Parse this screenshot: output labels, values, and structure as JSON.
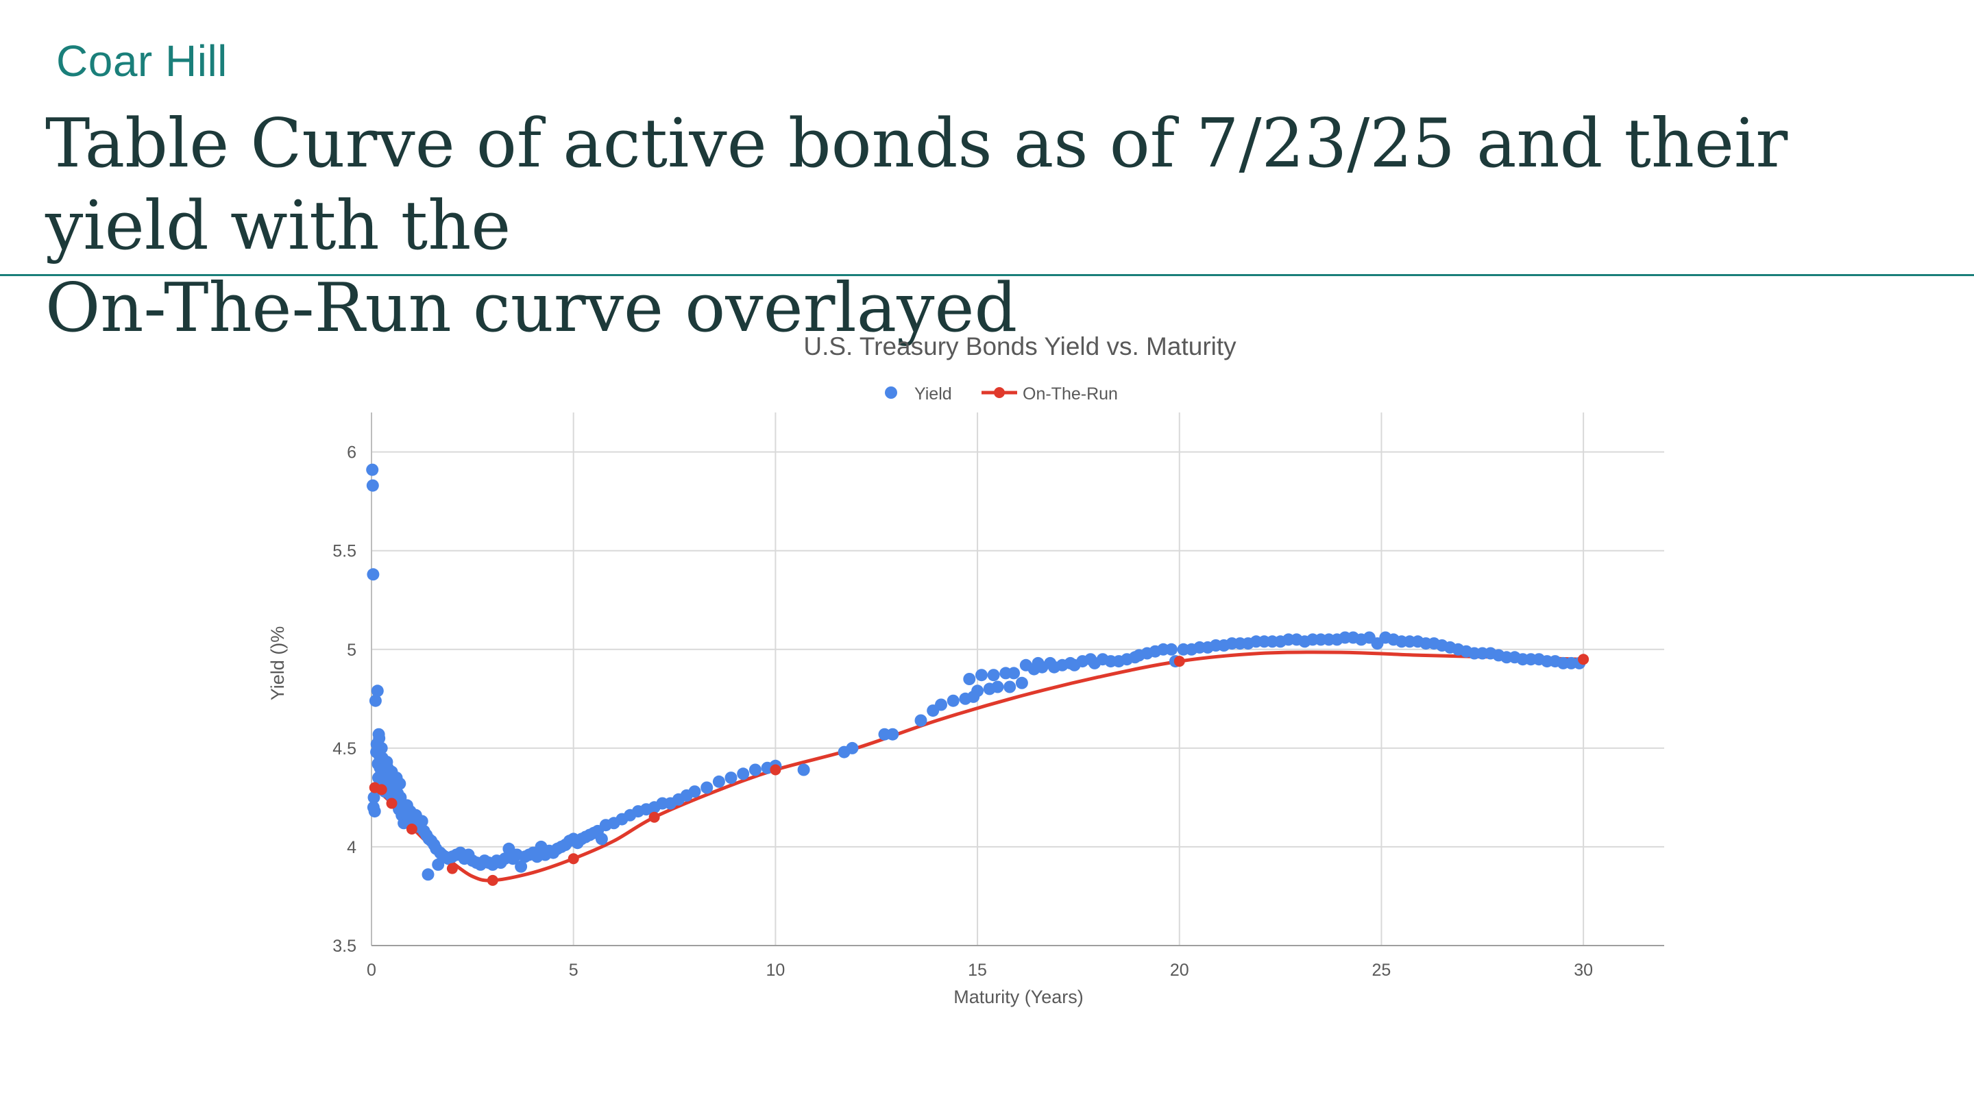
{
  "brand": "Coar Hill",
  "slide_title_line1": "Table Curve of active bonds as of 7/23/25 and their yield with the",
  "slide_title_line2": "On-The-Run curve overlayed",
  "colors": {
    "brand": "#1a7f7a",
    "title": "#1d3a3a",
    "yield_series": "#4a86e8",
    "on_the_run_series": "#e0392b",
    "gridline": "#d9d9d9"
  },
  "chart_data": {
    "type": "scatter",
    "title": "U.S. Treasury Bonds Yield vs. Maturity",
    "xlabel": "Maturity (Years)",
    "ylabel": "Yield ()%",
    "xlim": [
      0,
      32
    ],
    "ylim": [
      3.5,
      6.2
    ],
    "xticks": [
      "0",
      "5",
      "10",
      "15",
      "20",
      "25",
      "30"
    ],
    "yticks": [
      "3.5",
      "4",
      "4.5",
      "5",
      "5.5",
      "6"
    ],
    "grid": true,
    "legend_position": "top",
    "series": [
      {
        "name": "Yield",
        "style": "markers",
        "color": "#4a86e8",
        "points": [
          [
            0.02,
            5.91
          ],
          [
            0.03,
            5.83
          ],
          [
            0.04,
            5.38
          ],
          [
            0.05,
            4.2
          ],
          [
            0.06,
            4.25
          ],
          [
            0.08,
            4.18
          ],
          [
            0.1,
            4.74
          ],
          [
            0.12,
            4.48
          ],
          [
            0.13,
            4.52
          ],
          [
            0.14,
            4.3
          ],
          [
            0.15,
            4.79
          ],
          [
            0.16,
            4.42
          ],
          [
            0.17,
            4.35
          ],
          [
            0.18,
            4.57
          ],
          [
            0.19,
            4.55
          ],
          [
            0.2,
            4.46
          ],
          [
            0.21,
            4.4
          ],
          [
            0.22,
            4.33
          ],
          [
            0.24,
            4.37
          ],
          [
            0.25,
            4.5
          ],
          [
            0.27,
            4.45
          ],
          [
            0.29,
            4.38
          ],
          [
            0.31,
            4.32
          ],
          [
            0.33,
            4.28
          ],
          [
            0.35,
            4.36
          ],
          [
            0.38,
            4.43
          ],
          [
            0.4,
            4.4
          ],
          [
            0.42,
            4.29
          ],
          [
            0.44,
            4.35
          ],
          [
            0.46,
            4.31
          ],
          [
            0.48,
            4.26
          ],
          [
            0.5,
            4.38
          ],
          [
            0.52,
            4.33
          ],
          [
            0.55,
            4.24
          ],
          [
            0.58,
            4.3
          ],
          [
            0.6,
            4.22
          ],
          [
            0.62,
            4.35
          ],
          [
            0.65,
            4.27
          ],
          [
            0.68,
            4.19
          ],
          [
            0.7,
            4.32
          ],
          [
            0.72,
            4.25
          ],
          [
            0.75,
            4.16
          ],
          [
            0.78,
            4.2
          ],
          [
            0.8,
            4.12
          ],
          [
            0.84,
            4.17
          ],
          [
            0.88,
            4.21
          ],
          [
            0.92,
            4.13
          ],
          [
            0.96,
            4.18
          ],
          [
            1.0,
            4.15
          ],
          [
            1.05,
            4.1
          ],
          [
            1.1,
            4.16
          ],
          [
            1.15,
            4.12
          ],
          [
            1.2,
            4.1
          ],
          [
            1.25,
            4.13
          ],
          [
            1.3,
            4.08
          ],
          [
            1.36,
            4.06
          ],
          [
            1.42,
            4.04
          ],
          [
            1.48,
            4.03
          ],
          [
            1.4,
            3.86
          ],
          [
            1.55,
            4.01
          ],
          [
            1.6,
            3.99
          ],
          [
            1.65,
            3.91
          ],
          [
            1.7,
            3.97
          ],
          [
            1.75,
            3.96
          ],
          [
            1.82,
            3.95
          ],
          [
            1.9,
            3.94
          ],
          [
            2.0,
            3.95
          ],
          [
            2.1,
            3.96
          ],
          [
            2.2,
            3.97
          ],
          [
            2.3,
            3.94
          ],
          [
            2.4,
            3.96
          ],
          [
            2.5,
            3.93
          ],
          [
            2.6,
            3.92
          ],
          [
            2.7,
            3.91
          ],
          [
            2.8,
            3.93
          ],
          [
            2.9,
            3.92
          ],
          [
            3.0,
            3.91
          ],
          [
            3.1,
            3.93
          ],
          [
            3.2,
            3.92
          ],
          [
            3.3,
            3.94
          ],
          [
            3.4,
            3.99
          ],
          [
            3.5,
            3.94
          ],
          [
            3.6,
            3.96
          ],
          [
            3.7,
            3.9
          ],
          [
            3.8,
            3.95
          ],
          [
            3.9,
            3.96
          ],
          [
            4.0,
            3.97
          ],
          [
            4.1,
            3.95
          ],
          [
            4.2,
            4.0
          ],
          [
            4.3,
            3.96
          ],
          [
            4.4,
            3.98
          ],
          [
            4.5,
            3.97
          ],
          [
            4.6,
            3.99
          ],
          [
            4.7,
            4.0
          ],
          [
            4.8,
            4.01
          ],
          [
            4.9,
            4.03
          ],
          [
            5.0,
            4.04
          ],
          [
            5.1,
            4.02
          ],
          [
            5.2,
            4.04
          ],
          [
            5.3,
            4.05
          ],
          [
            5.4,
            4.06
          ],
          [
            5.5,
            4.07
          ],
          [
            5.6,
            4.08
          ],
          [
            5.7,
            4.04
          ],
          [
            5.8,
            4.11
          ],
          [
            6.0,
            4.12
          ],
          [
            6.2,
            4.14
          ],
          [
            6.4,
            4.16
          ],
          [
            6.6,
            4.18
          ],
          [
            6.8,
            4.19
          ],
          [
            7.0,
            4.2
          ],
          [
            7.2,
            4.22
          ],
          [
            7.4,
            4.22
          ],
          [
            7.6,
            4.24
          ],
          [
            7.8,
            4.26
          ],
          [
            8.0,
            4.28
          ],
          [
            8.3,
            4.3
          ],
          [
            8.6,
            4.33
          ],
          [
            8.9,
            4.35
          ],
          [
            9.2,
            4.37
          ],
          [
            9.5,
            4.39
          ],
          [
            9.8,
            4.4
          ],
          [
            10.0,
            4.41
          ],
          [
            10.7,
            4.39
          ],
          [
            11.7,
            4.48
          ],
          [
            11.9,
            4.5
          ],
          [
            12.7,
            4.57
          ],
          [
            12.9,
            4.57
          ],
          [
            13.6,
            4.64
          ],
          [
            13.9,
            4.69
          ],
          [
            14.1,
            4.72
          ],
          [
            14.4,
            4.74
          ],
          [
            14.7,
            4.75
          ],
          [
            14.9,
            4.76
          ],
          [
            14.8,
            4.85
          ],
          [
            15.0,
            4.79
          ],
          [
            15.1,
            4.87
          ],
          [
            15.3,
            4.8
          ],
          [
            15.4,
            4.87
          ],
          [
            15.5,
            4.81
          ],
          [
            15.7,
            4.88
          ],
          [
            15.8,
            4.81
          ],
          [
            15.9,
            4.88
          ],
          [
            16.1,
            4.83
          ],
          [
            16.2,
            4.92
          ],
          [
            16.4,
            4.9
          ],
          [
            16.5,
            4.93
          ],
          [
            16.6,
            4.91
          ],
          [
            16.8,
            4.93
          ],
          [
            16.9,
            4.91
          ],
          [
            17.1,
            4.92
          ],
          [
            17.3,
            4.93
          ],
          [
            17.4,
            4.92
          ],
          [
            17.6,
            4.94
          ],
          [
            17.8,
            4.95
          ],
          [
            17.9,
            4.93
          ],
          [
            18.1,
            4.95
          ],
          [
            18.3,
            4.94
          ],
          [
            18.5,
            4.94
          ],
          [
            18.7,
            4.95
          ],
          [
            18.9,
            4.96
          ],
          [
            19.0,
            4.97
          ],
          [
            19.2,
            4.98
          ],
          [
            19.4,
            4.99
          ],
          [
            19.6,
            5.0
          ],
          [
            19.8,
            5.0
          ],
          [
            19.9,
            4.94
          ],
          [
            20.1,
            5.0
          ],
          [
            20.3,
            5.0
          ],
          [
            20.5,
            5.01
          ],
          [
            20.7,
            5.01
          ],
          [
            20.9,
            5.02
          ],
          [
            21.1,
            5.02
          ],
          [
            21.3,
            5.03
          ],
          [
            21.5,
            5.03
          ],
          [
            21.7,
            5.03
          ],
          [
            21.9,
            5.04
          ],
          [
            22.1,
            5.04
          ],
          [
            22.3,
            5.04
          ],
          [
            22.5,
            5.04
          ],
          [
            22.7,
            5.05
          ],
          [
            22.9,
            5.05
          ],
          [
            23.1,
            5.04
          ],
          [
            23.3,
            5.05
          ],
          [
            23.5,
            5.05
          ],
          [
            23.7,
            5.05
          ],
          [
            23.9,
            5.05
          ],
          [
            24.1,
            5.06
          ],
          [
            24.3,
            5.06
          ],
          [
            24.5,
            5.05
          ],
          [
            24.7,
            5.06
          ],
          [
            24.9,
            5.03
          ],
          [
            25.1,
            5.06
          ],
          [
            25.3,
            5.05
          ],
          [
            25.5,
            5.04
          ],
          [
            25.7,
            5.04
          ],
          [
            25.9,
            5.04
          ],
          [
            26.1,
            5.03
          ],
          [
            26.3,
            5.03
          ],
          [
            26.5,
            5.02
          ],
          [
            26.7,
            5.01
          ],
          [
            26.9,
            5.0
          ],
          [
            27.1,
            4.99
          ],
          [
            27.3,
            4.98
          ],
          [
            27.5,
            4.98
          ],
          [
            27.7,
            4.98
          ],
          [
            27.9,
            4.97
          ],
          [
            28.1,
            4.96
          ],
          [
            28.3,
            4.96
          ],
          [
            28.5,
            4.95
          ],
          [
            28.7,
            4.95
          ],
          [
            28.9,
            4.95
          ],
          [
            29.1,
            4.94
          ],
          [
            29.3,
            4.94
          ],
          [
            29.5,
            4.93
          ],
          [
            29.7,
            4.93
          ],
          [
            29.9,
            4.93
          ]
        ]
      },
      {
        "name": "On-The-Run",
        "style": "line-with-markers",
        "color": "#e0392b",
        "points": [
          [
            0.08,
            4.3
          ],
          [
            0.25,
            4.29
          ],
          [
            0.5,
            4.22
          ],
          [
            1,
            4.09
          ],
          [
            2,
            3.89
          ],
          [
            3,
            3.83
          ],
          [
            5,
            3.94
          ],
          [
            7,
            4.15
          ],
          [
            10,
            4.39
          ],
          [
            20,
            4.94
          ],
          [
            30,
            4.95
          ]
        ],
        "curve": [
          [
            0.08,
            4.3
          ],
          [
            0.5,
            4.22
          ],
          [
            1,
            4.1
          ],
          [
            1.5,
            4.0
          ],
          [
            2,
            3.92
          ],
          [
            2.5,
            3.85
          ],
          [
            3,
            3.83
          ],
          [
            4,
            3.87
          ],
          [
            5,
            3.94
          ],
          [
            6,
            4.03
          ],
          [
            7,
            4.15
          ],
          [
            8.5,
            4.28
          ],
          [
            10,
            4.39
          ],
          [
            12,
            4.5
          ],
          [
            14,
            4.64
          ],
          [
            16,
            4.76
          ],
          [
            18,
            4.86
          ],
          [
            20,
            4.94
          ],
          [
            22,
            4.98
          ],
          [
            24,
            4.985
          ],
          [
            26,
            4.97
          ],
          [
            28,
            4.96
          ],
          [
            30,
            4.95
          ]
        ]
      }
    ]
  }
}
